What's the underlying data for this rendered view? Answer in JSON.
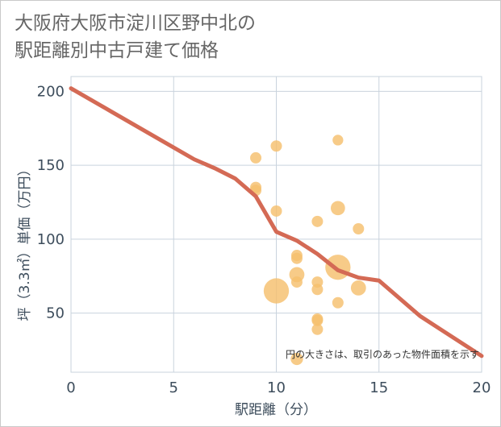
{
  "title_lines": [
    "大阪府大阪市淀川区野中北の",
    "駅距離別中古戸建て価格"
  ],
  "note": "円の大きさは、取引のあった物件面積を示す",
  "colors": {
    "line": "#d46a55",
    "bubble": "#f5c06e",
    "grid": "#c9d3dd",
    "plot_bg": "#ffffff"
  },
  "chart_data": {
    "type": "scatter",
    "title": "大阪府大阪市淀川区野中北の駅距離別中古戸建て価格",
    "xlabel": "駅距離（分）",
    "ylabel": "坪（3.3㎡）単価（万円）",
    "xlim": [
      0,
      20
    ],
    "ylim": [
      10,
      210
    ],
    "xticks": [
      0,
      5,
      10,
      15,
      20
    ],
    "yticks": [
      50,
      100,
      150,
      200
    ],
    "grid": true,
    "bubbles": [
      {
        "x": 9,
        "y": 155,
        "size": 1
      },
      {
        "x": 9,
        "y": 135,
        "size": 1
      },
      {
        "x": 9,
        "y": 133,
        "size": 1
      },
      {
        "x": 10,
        "y": 163,
        "size": 1
      },
      {
        "x": 10,
        "y": 119,
        "size": 1
      },
      {
        "x": 10,
        "y": 65,
        "size": 5
      },
      {
        "x": 11,
        "y": 89,
        "size": 1
      },
      {
        "x": 11,
        "y": 87,
        "size": 1
      },
      {
        "x": 11,
        "y": 76,
        "size": 1.8
      },
      {
        "x": 11,
        "y": 71,
        "size": 1
      },
      {
        "x": 11,
        "y": 19,
        "size": 1.2
      },
      {
        "x": 12,
        "y": 112,
        "size": 1
      },
      {
        "x": 12,
        "y": 71,
        "size": 1
      },
      {
        "x": 12,
        "y": 66,
        "size": 1
      },
      {
        "x": 12,
        "y": 46,
        "size": 1
      },
      {
        "x": 12,
        "y": 45,
        "size": 1
      },
      {
        "x": 12,
        "y": 39,
        "size": 1
      },
      {
        "x": 13,
        "y": 167,
        "size": 0.9
      },
      {
        "x": 13,
        "y": 121,
        "size": 1.6
      },
      {
        "x": 13,
        "y": 81,
        "size": 5
      },
      {
        "x": 13,
        "y": 57,
        "size": 1
      },
      {
        "x": 14,
        "y": 107,
        "size": 1
      },
      {
        "x": 14,
        "y": 67,
        "size": 1.8
      }
    ],
    "trend_line": {
      "x": [
        0,
        2,
        4,
        6,
        7,
        8,
        9,
        10,
        11,
        12,
        13,
        14,
        15,
        16,
        17,
        18,
        19,
        20
      ],
      "y": [
        202,
        186,
        170,
        154,
        148,
        141,
        129,
        105,
        99,
        90,
        79,
        74,
        72,
        60,
        48,
        39,
        30,
        21
      ]
    }
  }
}
